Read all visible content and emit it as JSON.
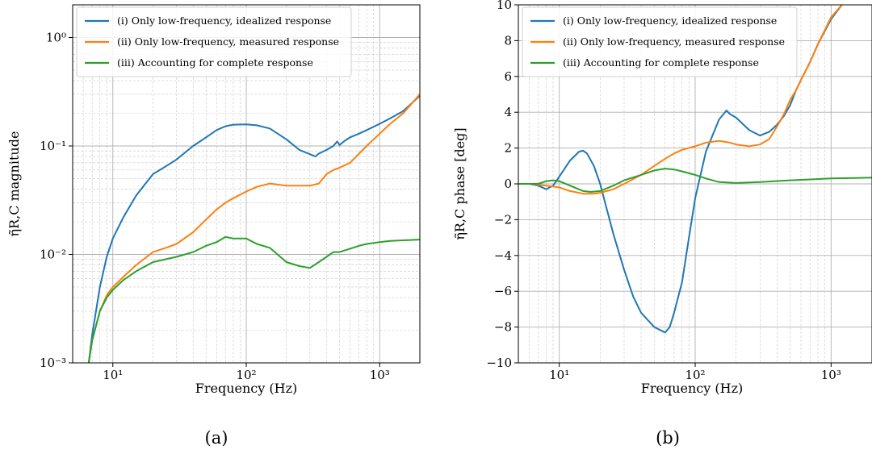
{
  "chart_data": [
    {
      "type": "line",
      "panel_label": "(a)",
      "xlabel": "Frequency (Hz)",
      "ylabel": "η̃R,C magnitude",
      "xscale": "log",
      "yscale": "log",
      "xlim": [
        5,
        2000
      ],
      "ylim": [
        0.001,
        2
      ],
      "x_ticks": [
        10,
        100,
        1000
      ],
      "x_tick_labels": [
        "10¹",
        "10²",
        "10³"
      ],
      "y_ticks": [
        0.001,
        0.01,
        0.1,
        1
      ],
      "y_tick_labels": [
        "10⁻³",
        "10⁻²",
        "10⁻¹",
        "10⁰"
      ],
      "grid": "major and minor",
      "legend_position": "top-left",
      "series": [
        {
          "name": "(i) Only low-frequency, idealized response",
          "color": "#1f77b4",
          "x": [
            6.6,
            7,
            8,
            9,
            10,
            12,
            15,
            20,
            25,
            30,
            40,
            50,
            60,
            70,
            80,
            100,
            120,
            150,
            200,
            250,
            300,
            330,
            350,
            400,
            450,
            480,
            500,
            550,
            600,
            700,
            800,
            1000,
            1200,
            1500,
            2000
          ],
          "y": [
            0.001,
            0.0018,
            0.005,
            0.0095,
            0.014,
            0.022,
            0.035,
            0.055,
            0.065,
            0.075,
            0.1,
            0.12,
            0.14,
            0.152,
            0.157,
            0.158,
            0.155,
            0.145,
            0.115,
            0.092,
            0.084,
            0.08,
            0.085,
            0.092,
            0.1,
            0.11,
            0.102,
            0.112,
            0.12,
            0.13,
            0.14,
            0.16,
            0.18,
            0.21,
            0.29
          ]
        },
        {
          "name": "(ii) Only low-frequency, measured response",
          "color": "#ff7f0e",
          "x": [
            6.6,
            7,
            8,
            9,
            10,
            12,
            15,
            20,
            25,
            30,
            40,
            50,
            60,
            70,
            80,
            100,
            120,
            150,
            200,
            300,
            350,
            400,
            450,
            500,
            600,
            700,
            800,
            1000,
            1200,
            1500,
            2000
          ],
          "y": [
            0.001,
            0.0016,
            0.003,
            0.0042,
            0.005,
            0.0062,
            0.008,
            0.0105,
            0.0115,
            0.0125,
            0.016,
            0.021,
            0.026,
            0.03,
            0.033,
            0.038,
            0.042,
            0.045,
            0.043,
            0.043,
            0.045,
            0.055,
            0.06,
            0.063,
            0.07,
            0.085,
            0.1,
            0.13,
            0.16,
            0.2,
            0.3
          ]
        },
        {
          "name": "(iii) Accounting for complete response",
          "color": "#2ca02c",
          "x": [
            6.6,
            7,
            8,
            9,
            10,
            12,
            15,
            20,
            30,
            40,
            50,
            60,
            70,
            80,
            100,
            120,
            150,
            180,
            200,
            250,
            300,
            350,
            400,
            450,
            500,
            600,
            700,
            800,
            1000,
            1200,
            1500,
            2000
          ],
          "y": [
            0.001,
            0.0016,
            0.003,
            0.004,
            0.0047,
            0.0058,
            0.007,
            0.0085,
            0.0095,
            0.0105,
            0.012,
            0.013,
            0.0145,
            0.014,
            0.014,
            0.0125,
            0.0115,
            0.0095,
            0.0085,
            0.0078,
            0.0075,
            0.0085,
            0.0095,
            0.0105,
            0.0105,
            0.0113,
            0.012,
            0.0125,
            0.013,
            0.0133,
            0.0135,
            0.0137
          ]
        }
      ]
    },
    {
      "type": "line",
      "panel_label": "(b)",
      "xlabel": "Frequency (Hz)",
      "ylabel": "η̃R,C phase [deg]",
      "xscale": "log",
      "yscale": "linear",
      "xlim": [
        5,
        2000
      ],
      "ylim": [
        -10,
        10
      ],
      "x_ticks": [
        10,
        100,
        1000
      ],
      "x_tick_labels": [
        "10¹",
        "10²",
        "10³"
      ],
      "y_ticks": [
        -10,
        -8,
        -6,
        -4,
        -2,
        0,
        2,
        4,
        6,
        8,
        10
      ],
      "y_tick_labels": [
        "−10",
        "−8",
        "−6",
        "−4",
        "−2",
        "0",
        "2",
        "4",
        "6",
        "8",
        "10"
      ],
      "grid": "major and minor",
      "legend_position": "top-left",
      "series": [
        {
          "name": "(i) Only low-frequency, idealized response",
          "color": "#1f77b4",
          "x": [
            5,
            6,
            7,
            8,
            9,
            10,
            12,
            14,
            15,
            16,
            18,
            20,
            22,
            25,
            30,
            35,
            40,
            50,
            60,
            65,
            70,
            80,
            90,
            100,
            120,
            150,
            170,
            180,
            200,
            250,
            300,
            350,
            400,
            450,
            500,
            550,
            600,
            700,
            800,
            1000,
            1200
          ],
          "y": [
            0,
            0,
            -0.1,
            -0.3,
            -0.1,
            0.4,
            1.3,
            1.8,
            1.85,
            1.7,
            1.0,
            0.0,
            -1.2,
            -2.8,
            -4.8,
            -6.3,
            -7.2,
            -8.0,
            -8.3,
            -8.0,
            -7.2,
            -5.5,
            -3.0,
            -0.8,
            1.8,
            3.6,
            4.1,
            3.9,
            3.7,
            3.0,
            2.7,
            2.9,
            3.3,
            3.8,
            4.4,
            5.2,
            5.8,
            6.8,
            7.8,
            9.2,
            10
          ]
        },
        {
          "name": "(ii) Only low-frequency, measured response",
          "color": "#ff7f0e",
          "x": [
            5,
            6,
            7,
            8,
            9,
            10,
            12,
            15,
            18,
            20,
            25,
            30,
            40,
            50,
            60,
            70,
            80,
            100,
            120,
            150,
            180,
            200,
            250,
            300,
            350,
            400,
            450,
            500,
            550,
            600,
            700,
            800,
            1000,
            1200
          ],
          "y": [
            0,
            0,
            -0.05,
            -0.1,
            -0.15,
            -0.2,
            -0.4,
            -0.55,
            -0.55,
            -0.5,
            -0.3,
            0,
            0.5,
            1.0,
            1.4,
            1.7,
            1.9,
            2.1,
            2.3,
            2.4,
            2.3,
            2.2,
            2.1,
            2.2,
            2.5,
            3.2,
            3.9,
            4.7,
            5.2,
            5.8,
            6.8,
            7.8,
            9.3,
            10
          ]
        },
        {
          "name": "(iii) Accounting for complete response",
          "color": "#2ca02c",
          "x": [
            5,
            6,
            7,
            8,
            9,
            10,
            12,
            15,
            17,
            20,
            25,
            30,
            40,
            50,
            60,
            70,
            80,
            100,
            120,
            150,
            200,
            300,
            500,
            700,
            1000,
            1500,
            2000
          ],
          "y": [
            0,
            0,
            0,
            0.15,
            0.2,
            0.15,
            -0.1,
            -0.4,
            -0.45,
            -0.4,
            -0.1,
            0.2,
            0.5,
            0.75,
            0.85,
            0.8,
            0.7,
            0.5,
            0.3,
            0.1,
            0.05,
            0.1,
            0.2,
            0.25,
            0.3,
            0.33,
            0.35
          ]
        }
      ]
    }
  ]
}
